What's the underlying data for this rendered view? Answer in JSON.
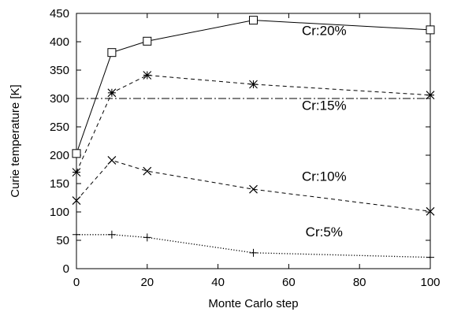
{
  "chart_data": {
    "type": "line",
    "xlabel": "Monte Carlo step",
    "ylabel": "Curie temperature [K]",
    "xlim": [
      0,
      100
    ],
    "ylim": [
      0,
      450
    ],
    "xticks": [
      0,
      20,
      40,
      60,
      80,
      100
    ],
    "yticks": [
      0,
      50,
      100,
      150,
      200,
      250,
      300,
      350,
      400,
      450
    ],
    "grid": false,
    "series": [
      {
        "name": "Cr:20%",
        "marker": "square",
        "line": "solid",
        "x": [
          0,
          10,
          20,
          50,
          100
        ],
        "y": [
          203,
          381,
          401,
          438,
          421
        ]
      },
      {
        "name": "Cr:15%",
        "marker": "star",
        "line": "dashed",
        "x": [
          0,
          10,
          20,
          50,
          100
        ],
        "y": [
          170,
          310,
          341,
          325,
          306
        ]
      },
      {
        "name": "Cr:10%",
        "marker": "x",
        "line": "dashed",
        "x": [
          0,
          10,
          20,
          50,
          100
        ],
        "y": [
          120,
          191,
          172,
          140,
          101
        ]
      },
      {
        "name": "Cr:5%",
        "marker": "plus",
        "line": "dotted",
        "x": [
          0,
          10,
          20,
          50,
          100
        ],
        "y": [
          60,
          60,
          55,
          28,
          20
        ]
      }
    ],
    "reference_line": {
      "y": 300,
      "style": "dash-dot"
    },
    "annotations": [
      {
        "text": "Cr:20%",
        "x": 70,
        "y": 412
      },
      {
        "text": "Cr:15%",
        "x": 70,
        "y": 280
      },
      {
        "text": "Cr:10%",
        "x": 70,
        "y": 155
      },
      {
        "text": "Cr:5%",
        "x": 70,
        "y": 57
      }
    ]
  }
}
